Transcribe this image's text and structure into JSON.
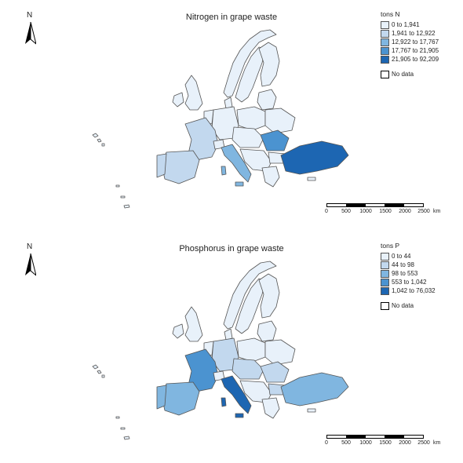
{
  "compass_label": "N",
  "colors": {
    "class1": "#e8f1fa",
    "class2": "#c2d8ee",
    "class3": "#80b6e0",
    "class4": "#4b93d0",
    "class5": "#1d66b2",
    "border": "#555555",
    "nodata": "#ffffff"
  },
  "maps": [
    {
      "title": "Nitrogen in grape waste",
      "legend_title": "tons N",
      "classes": [
        "0 to 1,941",
        "1,941 to 12,922",
        "12,922 to 17,767",
        "17,767 to 21,905",
        "21,905 to 92,209"
      ],
      "nodata_label": "No data"
    },
    {
      "title": "Phosphorus in grape waste",
      "legend_title": "tons P",
      "classes": [
        "0 to 44",
        "44 to 98",
        "98 to 553",
        "553 to 1,042",
        "1,042 to 76,032"
      ],
      "nodata_label": "No data"
    }
  ],
  "scalebar": {
    "labels": [
      "0",
      "500",
      "1000",
      "1500",
      "2000",
      "2500"
    ],
    "unit": "km"
  }
}
